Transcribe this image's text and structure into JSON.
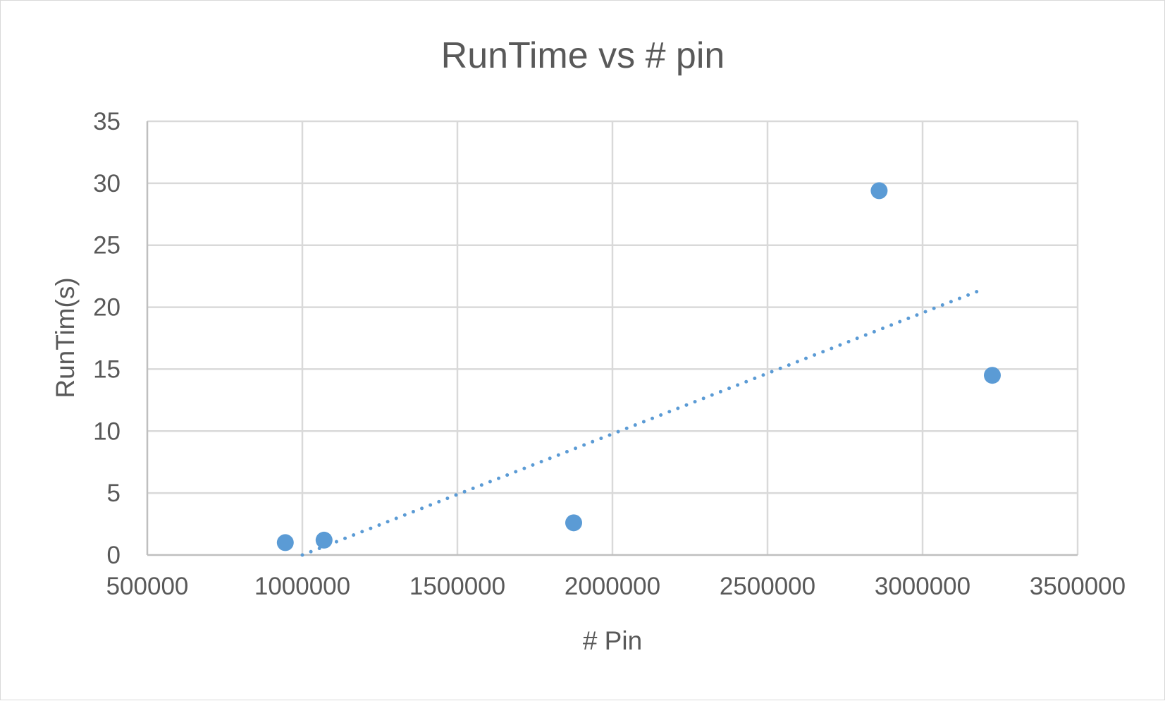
{
  "chart_data": {
    "type": "scatter",
    "title": "RunTime vs # pin",
    "xlabel": "# Pin",
    "ylabel": "RunTim(s)",
    "xlim": [
      500000,
      3500000
    ],
    "ylim": [
      0,
      35
    ],
    "x_ticks": [
      500000,
      1000000,
      1500000,
      2000000,
      2500000,
      3000000,
      3500000
    ],
    "y_ticks": [
      0,
      5,
      10,
      15,
      20,
      25,
      30,
      35
    ],
    "grid": true,
    "legend": "none",
    "series": [
      {
        "points": [
          {
            "x": 945000,
            "y": 1.0
          },
          {
            "x": 1070000,
            "y": 1.2
          },
          {
            "x": 1875000,
            "y": 2.6
          },
          {
            "x": 2860000,
            "y": 29.4
          },
          {
            "x": 3225000,
            "y": 14.5
          }
        ],
        "color": "#5b9bd5"
      }
    ],
    "trendline": {
      "type": "linear",
      "style": "dotted",
      "color": "#5b9bd5",
      "start": {
        "x": 1000000,
        "y": 0
      },
      "end": {
        "x": 3200000,
        "y": 21.5
      }
    }
  }
}
